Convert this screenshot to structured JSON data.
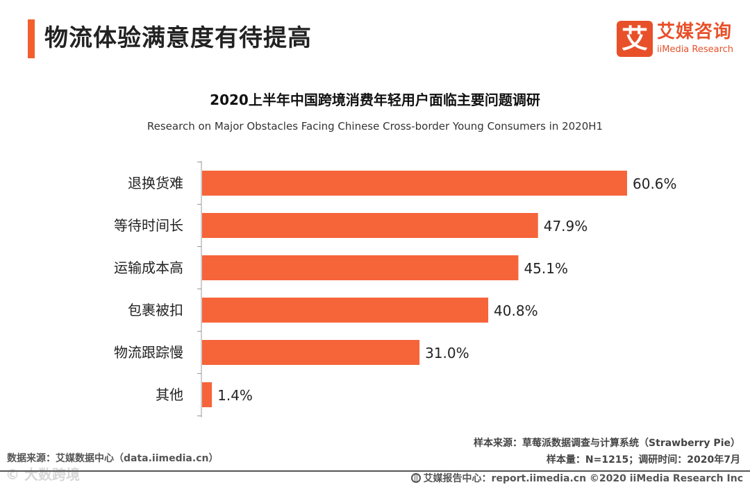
{
  "page": {
    "title": "物流体验满意度有待提高",
    "accent_color": "#f25f2d"
  },
  "logo": {
    "glyph": "艾",
    "name": "艾媒咨询",
    "en": "iiMedia Research",
    "color": "#e8502a"
  },
  "chart_data": {
    "type": "bar",
    "orientation": "horizontal",
    "title": "2020上半年中国跨境消费年轻用户面临主要问题调研",
    "subtitle": "Research on Major Obstacles Facing Chinese Cross-border Young Consumers in 2020H1",
    "categories": [
      "退换货难",
      "等待时间长",
      "运输成本高",
      "包裹被扣",
      "物流跟踪慢",
      "其他"
    ],
    "values": [
      60.6,
      47.9,
      45.1,
      40.8,
      31.0,
      1.4
    ],
    "value_labels": [
      "60.6%",
      "47.9%",
      "45.1%",
      "40.8%",
      "31.0%",
      "1.4%"
    ],
    "unit": "%",
    "xlim": [
      0,
      62
    ],
    "bar_color": "#f6643a",
    "grid": false,
    "legend": "none"
  },
  "footer": {
    "data_source": "数据来源：艾媒数据中心（data.iimedia.cn）",
    "sample_source": "样本来源：草莓派数据调查与计算系统（Strawberry Pie）",
    "sample_size": "样本量：N=1215；调研时间：2020年7月",
    "report_center": "艾媒报告中心：report.iimedia.cn  ©2020  iiMedia Research  Inc",
    "watermark": "© 大数跨境",
    "line_color": "#555555"
  }
}
